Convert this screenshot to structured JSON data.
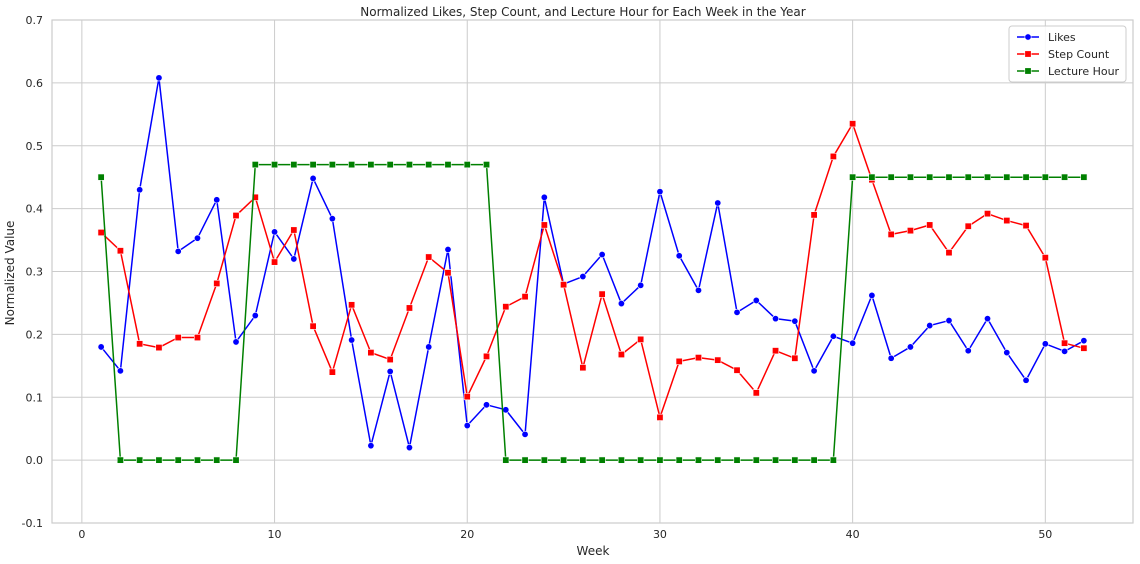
{
  "chart_data": {
    "type": "line",
    "title": "Normalized Likes, Step Count, and Lecture Hour for Each Week in the Year",
    "xlabel": "Week",
    "ylabel": "Normalized Value",
    "xlim": [
      -1.55,
      54.55
    ],
    "ylim": [
      -0.1,
      0.7
    ],
    "xticks": [
      0,
      10,
      20,
      30,
      40,
      50
    ],
    "yticks": [
      -0.1,
      0.0,
      0.1,
      0.2,
      0.3,
      0.4,
      0.5,
      0.6,
      0.7
    ],
    "grid": true,
    "legend_position": "top-right",
    "x": [
      1,
      2,
      3,
      4,
      5,
      6,
      7,
      8,
      9,
      10,
      11,
      12,
      13,
      14,
      15,
      16,
      17,
      18,
      19,
      20,
      21,
      22,
      23,
      24,
      25,
      26,
      27,
      28,
      29,
      30,
      31,
      32,
      33,
      34,
      35,
      36,
      37,
      38,
      39,
      40,
      41,
      42,
      43,
      44,
      45,
      46,
      47,
      48,
      49,
      50,
      51,
      52
    ],
    "series": [
      {
        "name": "Likes",
        "color": "#0000ff",
        "marker": "circle",
        "values": [
          0.18,
          0.142,
          0.43,
          0.608,
          0.332,
          0.353,
          0.414,
          0.188,
          0.23,
          0.363,
          0.32,
          0.448,
          0.384,
          0.191,
          0.023,
          0.141,
          0.02,
          0.18,
          0.335,
          0.055,
          0.088,
          0.08,
          0.041,
          0.418,
          0.28,
          0.292,
          0.327,
          0.249,
          0.278,
          0.427,
          0.325,
          0.27,
          0.409,
          0.235,
          0.254,
          0.225,
          0.221,
          0.142,
          0.197,
          0.186,
          0.262,
          0.162,
          0.18,
          0.214,
          0.222,
          0.174,
          0.225,
          0.171,
          0.127,
          0.185,
          0.173,
          0.19
        ]
      },
      {
        "name": "Step Count",
        "color": "#ff0000",
        "marker": "square",
        "values": [
          0.362,
          0.333,
          0.185,
          0.179,
          0.195,
          0.195,
          0.281,
          0.389,
          0.418,
          0.315,
          0.366,
          0.213,
          0.14,
          0.247,
          0.171,
          0.16,
          0.242,
          0.323,
          0.298,
          0.101,
          0.165,
          0.244,
          0.26,
          0.374,
          0.279,
          0.147,
          0.264,
          0.168,
          0.192,
          0.068,
          0.157,
          0.163,
          0.159,
          0.143,
          0.107,
          0.174,
          0.162,
          0.39,
          0.483,
          0.535,
          0.446,
          0.359,
          0.365,
          0.374,
          0.33,
          0.372,
          0.392,
          0.381,
          0.373,
          0.322,
          0.186,
          0.178
        ]
      },
      {
        "name": "Lecture Hour",
        "color": "#008000",
        "marker": "square",
        "values": [
          0.45,
          0.0,
          0.0,
          0.0,
          0.0,
          0.0,
          0.0,
          0.0,
          0.47,
          0.47,
          0.47,
          0.47,
          0.47,
          0.47,
          0.47,
          0.47,
          0.47,
          0.47,
          0.47,
          0.47,
          0.47,
          0.0,
          0.0,
          0.0,
          0.0,
          0.0,
          0.0,
          0.0,
          0.0,
          0.0,
          0.0,
          0.0,
          0.0,
          0.0,
          0.0,
          0.0,
          0.0,
          0.0,
          0.0,
          0.45,
          0.45,
          0.45,
          0.45,
          0.45,
          0.45,
          0.45,
          0.45,
          0.45,
          0.45,
          0.45,
          0.45,
          0.45
        ]
      }
    ]
  }
}
